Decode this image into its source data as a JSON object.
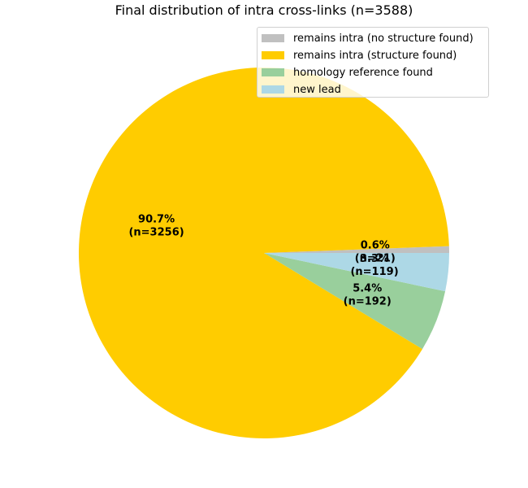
{
  "chart_data": {
    "type": "pie",
    "title": "Final distribution of intra cross-links (n=3588)",
    "total": 3588,
    "slices": [
      {
        "label": "remains intra (no structure found)",
        "value": 21,
        "percent_label": "0.6%",
        "count_label": "(n=21)",
        "color": "#c0c0c0"
      },
      {
        "label": "remains intra (structure found)",
        "value": 3256,
        "percent_label": "90.7%",
        "count_label": "(n=3256)",
        "color": "#ffcc00"
      },
      {
        "label": "homology reference found",
        "value": 192,
        "percent_label": "5.4%",
        "count_label": "(n=192)",
        "color": "#99cf9c"
      },
      {
        "label": "new lead",
        "value": 119,
        "percent_label": "3.3%",
        "count_label": "(n=119)",
        "color": "#add8e6"
      }
    ],
    "legend_position": "top-right",
    "start_angle_deg": 0,
    "direction": "counterclockwise"
  }
}
